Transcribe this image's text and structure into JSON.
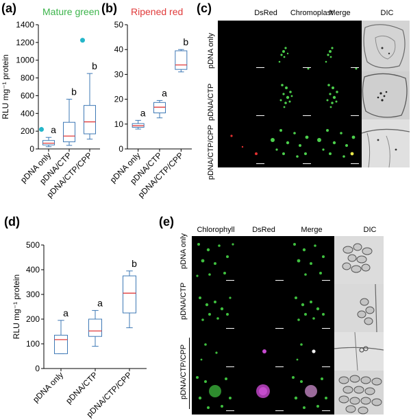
{
  "panel_a": {
    "label": "(a)",
    "title": "Mature green",
    "title_color": "#3cb44b",
    "chart_data": {
      "type": "box",
      "ylabel": "RLU mg⁻¹ protein",
      "ylim": [
        0,
        1400
      ],
      "yticks": [
        0,
        200,
        400,
        600,
        800,
        1000,
        1200,
        1400
      ],
      "categories": [
        "pDNA only",
        "pDNA/CTP",
        "pDNA/CTP/CPP"
      ],
      "boxes": [
        {
          "min": 25,
          "q1": 45,
          "median": 65,
          "q3": 95,
          "max": 130,
          "outliers": [
            220
          ],
          "letter": "a"
        },
        {
          "min": 40,
          "q1": 80,
          "median": 145,
          "q3": 300,
          "max": 560,
          "outliers": [],
          "letter": "b"
        },
        {
          "min": 110,
          "q1": 170,
          "median": 305,
          "q3": 490,
          "max": 850,
          "outliers": [
            1225
          ],
          "letter": "b"
        }
      ]
    }
  },
  "panel_b": {
    "label": "(b)",
    "title": "Ripened red",
    "title_color": "#e03a3a",
    "chart_data": {
      "type": "box",
      "ylim": [
        0,
        50
      ],
      "yticks": [
        0,
        10,
        20,
        30,
        40,
        50
      ],
      "categories": [
        "pDNA only",
        "pDNA/CTP",
        "pDNA/CTP/CPP"
      ],
      "boxes": [
        {
          "min": 8,
          "q1": 8.7,
          "median": 9.3,
          "q3": 10.2,
          "max": 11.5,
          "outliers": [],
          "letter": "a"
        },
        {
          "min": 12.5,
          "q1": 14.5,
          "median": 16.8,
          "q3": 18.7,
          "max": 19.5,
          "outliers": [],
          "letter": "a"
        },
        {
          "min": 31,
          "q1": 32,
          "median": 33.8,
          "q3": 39.5,
          "max": 40,
          "outliers": [],
          "letter": "b"
        }
      ]
    }
  },
  "panel_c": {
    "label": "(c)",
    "columns": [
      "DsRed",
      "Chromoplast",
      "Merge",
      "DIC"
    ],
    "rows": [
      "pDNA only",
      "pDNA/CTP",
      "pDNA/CTP/CPP"
    ]
  },
  "panel_d": {
    "label": "(d)",
    "chart_data": {
      "type": "box",
      "ylabel": "RLU mg⁻¹ protein",
      "ylim": [
        0,
        500
      ],
      "yticks": [
        0,
        100,
        200,
        300,
        400,
        500
      ],
      "categories": [
        "pDNA only",
        "pDNA/CTP",
        "pDNA/CTP/CPP"
      ],
      "boxes": [
        {
          "min": 60,
          "q1": 60,
          "median": 117,
          "q3": 135,
          "max": 195,
          "outliers": [],
          "letter": "a"
        },
        {
          "min": 90,
          "q1": 130,
          "median": 152,
          "q3": 200,
          "max": 235,
          "outliers": [],
          "letter": "a"
        },
        {
          "min": 165,
          "q1": 225,
          "median": 305,
          "q3": 375,
          "max": 395,
          "outliers": [],
          "letter": "b"
        }
      ]
    }
  },
  "panel_e": {
    "label": "(e)",
    "columns": [
      "Chlorophyll",
      "DsRed",
      "Merge",
      "DIC"
    ],
    "rows": [
      "pDNA only",
      "pDNA/CTP",
      "pDNA/CTP/CPP"
    ]
  },
  "colors": {
    "box_stroke": "#3d78b5",
    "median": "#e03a3a",
    "outlier": "#25b6c9"
  }
}
